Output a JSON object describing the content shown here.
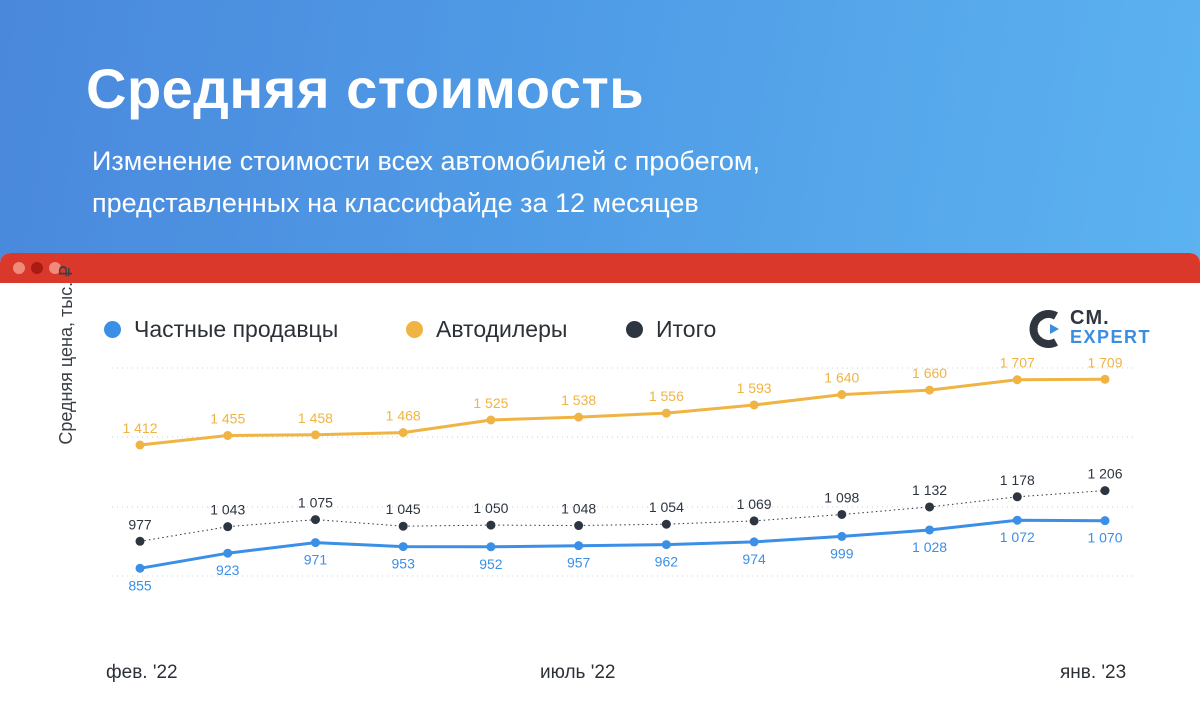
{
  "header": {
    "title": "Средняя стоимость",
    "subtitle_line1": "Изменение стоимости всех автомобилей с пробегом,",
    "subtitle_line2": "представленных на классифайде за 12 месяцев"
  },
  "logo": {
    "line1": "CM.",
    "line2": "EXPERT"
  },
  "colors": {
    "private": "#3b8fe6",
    "dealers": "#efb443",
    "total": "#2d3540",
    "header_bg": "#4f9be6",
    "titlebar": "#d9382a"
  },
  "chart_data": {
    "type": "line",
    "title": "Средняя стоимость",
    "ylabel": "Средняя цена, тыс. ₽",
    "xlabel": "",
    "x_tick_labels": [
      "фев. '22",
      "июль '22",
      "янв. '23"
    ],
    "ylim": [
      820,
      1760
    ],
    "grid": true,
    "legend_position": "top-left",
    "series": [
      {
        "name": "Частные продавцы",
        "values": [
          855,
          923,
          971,
          953,
          952,
          957,
          962,
          974,
          999,
          1028,
          1072,
          1070
        ],
        "labels": [
          "855",
          "923",
          "971",
          "953",
          "952",
          "957",
          "962",
          "974",
          "999",
          "1 028",
          "1 072",
          "1 070"
        ]
      },
      {
        "name": "Автодилеры",
        "values": [
          1412,
          1455,
          1458,
          1468,
          1525,
          1538,
          1556,
          1593,
          1640,
          1660,
          1707,
          1709
        ],
        "labels": [
          "1 412",
          "1 455",
          "1 458",
          "1 468",
          "1 525",
          "1 538",
          "1 556",
          "1 593",
          "1 640",
          "1 660",
          "1 707",
          "1 709"
        ]
      },
      {
        "name": "Итого",
        "values": [
          977,
          1043,
          1075,
          1045,
          1050,
          1048,
          1054,
          1069,
          1098,
          1132,
          1178,
          1206
        ],
        "labels": [
          "977",
          "1 043",
          "1 075",
          "1 045",
          "1 050",
          "1 048",
          "1 054",
          "1 069",
          "1 098",
          "1 132",
          "1 178",
          "1 206"
        ]
      }
    ]
  }
}
